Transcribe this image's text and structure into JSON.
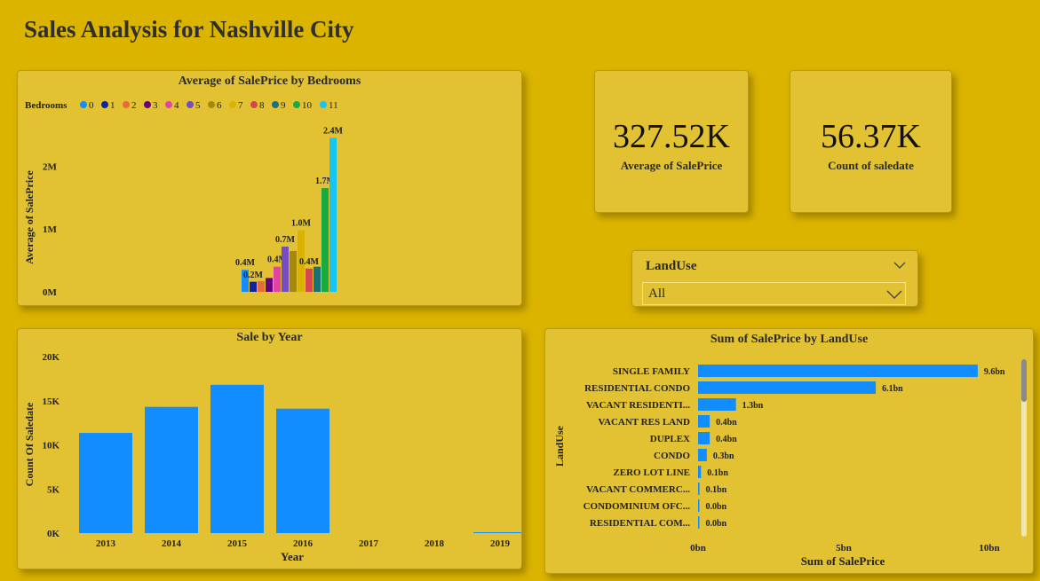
{
  "page": {
    "title": "Sales Analysis for Nashville City"
  },
  "kpis": [
    {
      "value": "327.52K",
      "label": "Average of SalePrice"
    },
    {
      "value": "56.37K",
      "label": "Count of saledate"
    }
  ],
  "slicer": {
    "title": "LandUse",
    "selected": "All"
  },
  "chart_data": [
    {
      "id": "bedrooms",
      "type": "bar",
      "title": "Average of SalePrice by Bedrooms",
      "legend_title": "Bedrooms",
      "legend_position": "top-left",
      "ylabel": "Average of SalePrice",
      "xlabel": "",
      "ylim": [
        0,
        2400000
      ],
      "yticks": [
        {
          "v": 0,
          "label": "0M"
        },
        {
          "v": 1000000,
          "label": "1M"
        },
        {
          "v": 2000000,
          "label": "2M"
        }
      ],
      "categories": [
        "0",
        "1",
        "2",
        "3",
        "4",
        "5",
        "6",
        "7",
        "8",
        "9",
        "10",
        "11"
      ],
      "values": [
        350000,
        160000,
        170000,
        220000,
        400000,
        720000,
        650000,
        980000,
        370000,
        400000,
        1650000,
        2450000
      ],
      "data_labels": [
        "0.4M",
        "0.2M",
        "",
        "",
        "0.4M",
        "0.7M",
        "",
        "1.0M",
        "0.4M",
        "",
        "1.7M",
        "2.4M"
      ],
      "colors": [
        "#118DFF",
        "#12239E",
        "#E66C37",
        "#6B007B",
        "#E044A7",
        "#744EC2",
        "#A6880E",
        "#D9B300",
        "#D64550",
        "#197278",
        "#1AAB40",
        "#15C6F4"
      ]
    },
    {
      "id": "year",
      "type": "bar",
      "title": "Sale by Year",
      "xlabel": "Year",
      "ylabel": "Count Of Saledate",
      "ylim": [
        0,
        20000
      ],
      "yticks": [
        {
          "v": 0,
          "label": "0K"
        },
        {
          "v": 5000,
          "label": "5K"
        },
        {
          "v": 10000,
          "label": "10K"
        },
        {
          "v": 15000,
          "label": "15K"
        },
        {
          "v": 20000,
          "label": "20K"
        }
      ],
      "categories": [
        "2013",
        "2014",
        "2015",
        "2016",
        "2017",
        "2018",
        "2019"
      ],
      "values": [
        11350,
        14300,
        16800,
        14100,
        0,
        0,
        2
      ],
      "color": "#118DFF"
    },
    {
      "id": "landuse",
      "type": "bar",
      "orientation": "horizontal",
      "title": "Sum of SalePrice by LandUse",
      "xlabel": "Sum of SalePrice",
      "ylabel": "LandUse",
      "xlim": [
        0,
        10000000000
      ],
      "xticks": [
        {
          "v": 0,
          "label": "0bn"
        },
        {
          "v": 5000000000,
          "label": "5bn"
        },
        {
          "v": 10000000000,
          "label": "10bn"
        }
      ],
      "categories": [
        "SINGLE FAMILY",
        "RESIDENTIAL CONDO",
        "VACANT RESIDENTI...",
        "VACANT RES LAND",
        "DUPLEX",
        "CONDO",
        "ZERO LOT LINE",
        "VACANT COMMERC...",
        "CONDOMINIUM OFC...",
        "RESIDENTIAL COM..."
      ],
      "values": [
        9600000000,
        6100000000,
        1300000000,
        400000000,
        400000000,
        300000000,
        100000000,
        50000000,
        20000000,
        10000000
      ],
      "data_labels": [
        "9.6bn",
        "6.1bn",
        "1.3bn",
        "0.4bn",
        "0.4bn",
        "0.3bn",
        "0.1bn",
        "0.1bn",
        "0.0bn",
        "0.0bn"
      ],
      "color": "#118DFF"
    }
  ]
}
